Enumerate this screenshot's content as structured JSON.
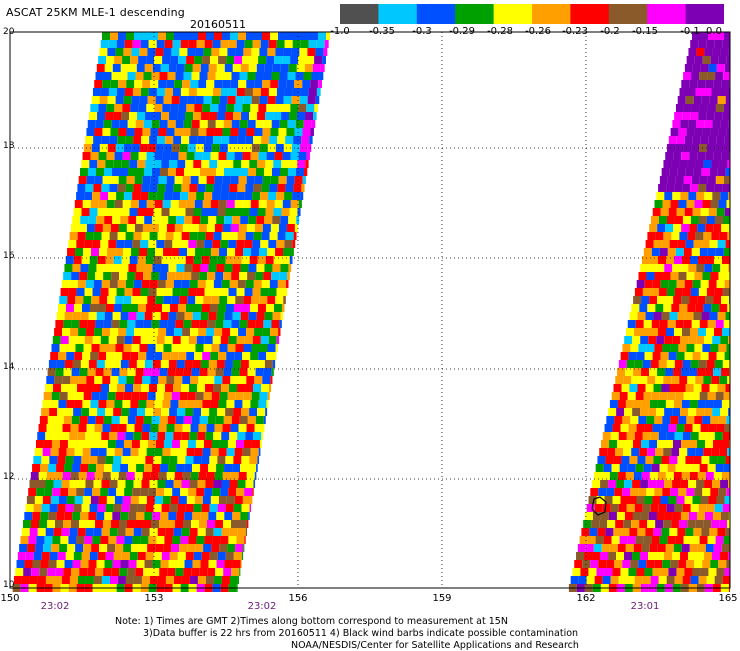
{
  "title": "ASCAT 25KM MLE-1 descending",
  "date": "20160511",
  "colorbar": {
    "ticks": [
      "-1.0",
      "-0.35",
      "-0.3",
      "-0.29",
      "-0.28",
      "-0.26",
      "-0.23",
      "-0.2",
      "-0.15",
      "-0.1",
      "0.0"
    ],
    "colors": [
      "#505050",
      "#00c8ff",
      "#0050ff",
      "#00a000",
      "#ffff00",
      "#ffa000",
      "#ff0000",
      "#8b5a2b",
      "#ff00ff",
      "#7d00b4"
    ]
  },
  "axes": {
    "lat_ticks": [
      "20",
      "18",
      "16",
      "14",
      "12",
      "10"
    ],
    "lon_ticks": [
      "150",
      "153",
      "156",
      "159",
      "162",
      "165"
    ],
    "times": [
      "23:02",
      "23:02",
      "23:01"
    ]
  },
  "notes": {
    "line1": "Note: 1) Times are GMT 2)Times along bottom correspond to measurement at 15N",
    "line2": "3)Data buffer is 22 hrs from 20160511 4) Black wind barbs indicate possible contamination",
    "line3": "NOAA/NESDIS/Center for Satellite Applications and Research"
  }
}
